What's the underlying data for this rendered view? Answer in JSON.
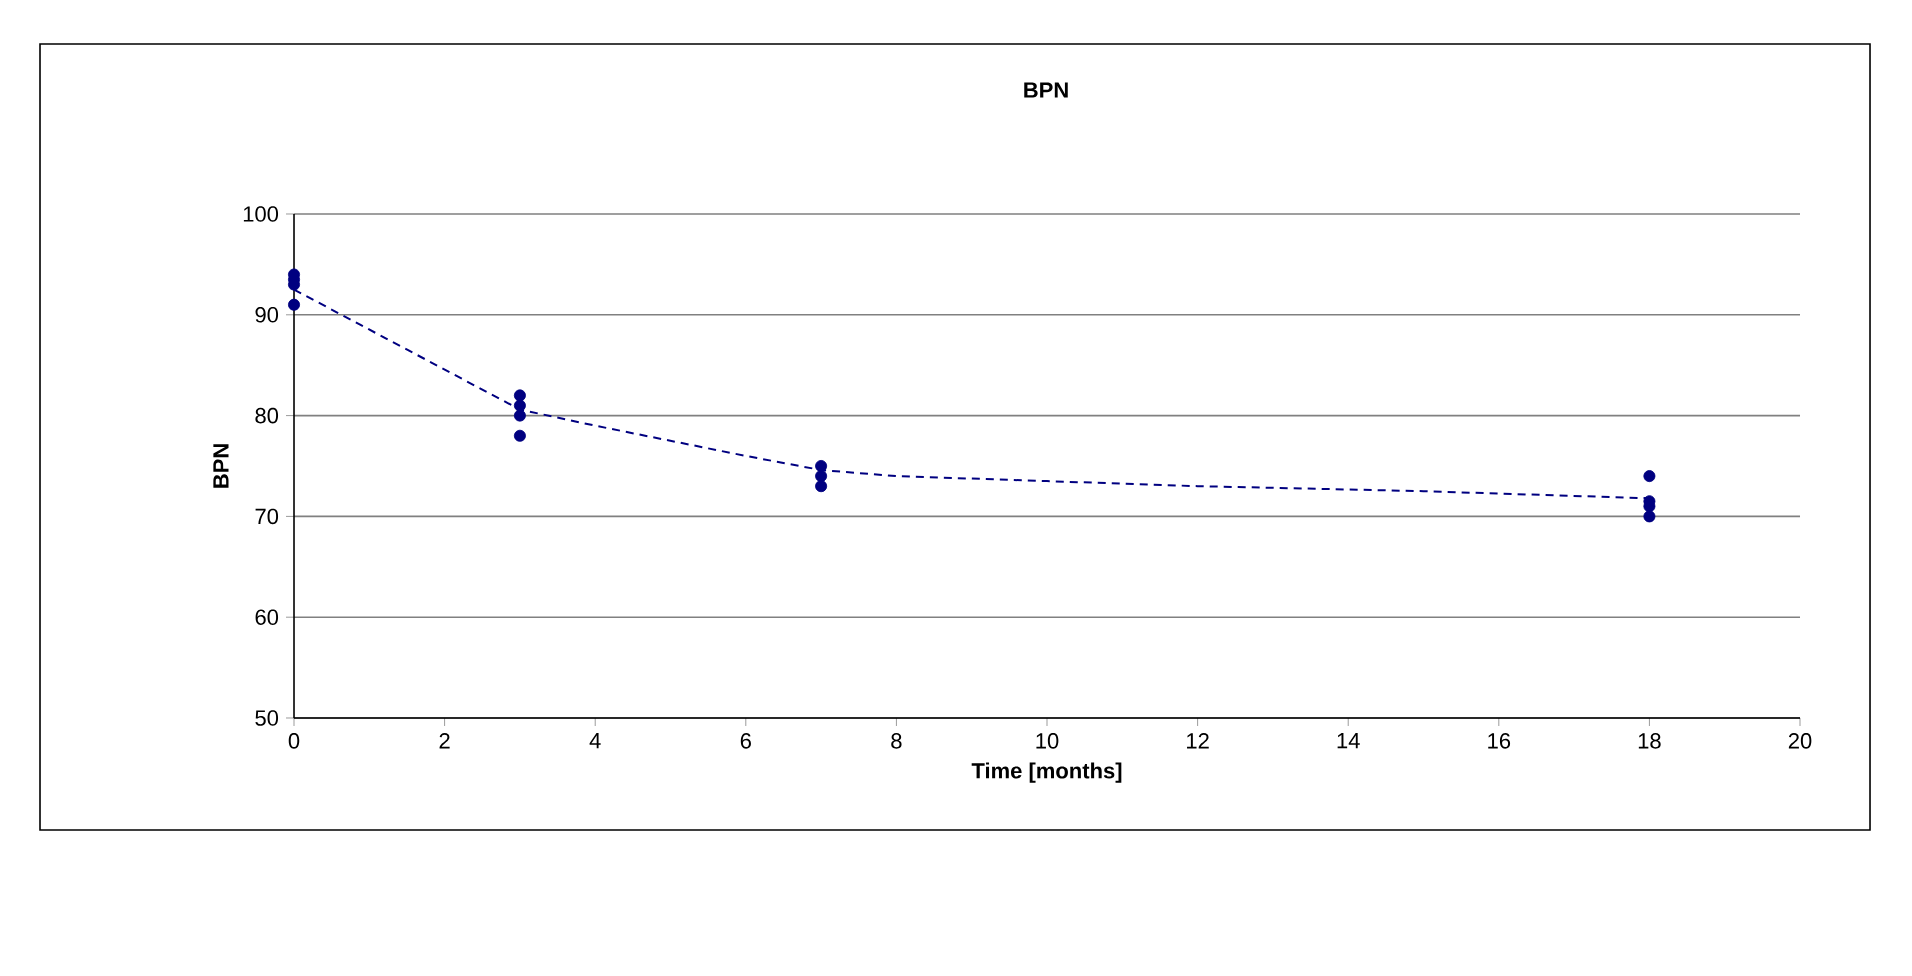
{
  "chart_data": {
    "type": "scatter",
    "title": "BPN",
    "xlabel": "Time [months]",
    "ylabel": "BPN",
    "xlim": [
      0,
      20
    ],
    "xticks": [
      0,
      2,
      4,
      6,
      8,
      10,
      12,
      14,
      16,
      18,
      20
    ],
    "ylim": [
      50,
      100
    ],
    "yticks": [
      50,
      60,
      70,
      80,
      90,
      100
    ],
    "grid": "y",
    "series": [
      {
        "color": "#000080",
        "marker": "circle",
        "x": [
          0,
          0,
          0,
          0,
          3,
          3,
          3,
          3,
          7,
          7,
          7,
          18,
          18,
          18,
          18
        ],
        "values": [
          94,
          93.5,
          93,
          91,
          82,
          81,
          80,
          78,
          75,
          74,
          73,
          74,
          71.5,
          71,
          70
        ]
      },
      {
        "type": "line",
        "color": "#000080",
        "marker": "none",
        "line_style": "dashed",
        "x": [
          0,
          3,
          4,
          6,
          7,
          8,
          10,
          12,
          15,
          18
        ],
        "values": [
          92.5,
          80.6,
          79,
          76,
          74.6,
          74,
          73.5,
          73,
          72.5,
          71.8
        ]
      }
    ]
  }
}
